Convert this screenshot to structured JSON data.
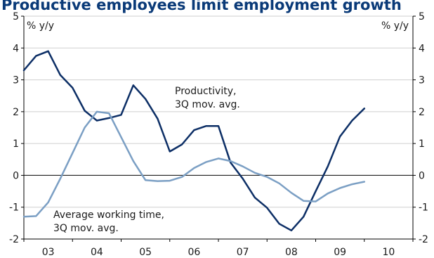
{
  "chart_data": {
    "type": "line",
    "title": "Productive employees limit employment growth",
    "y_unit_left": "% y/y",
    "y_unit_right": "% y/y",
    "ylim": [
      -2,
      5
    ],
    "yticks": [
      "5",
      "4",
      "3",
      "2",
      "1",
      "0",
      "-1",
      "-2"
    ],
    "ytick_values": [
      5,
      4,
      3,
      2,
      1,
      0,
      -1,
      -2
    ],
    "xlim": [
      2003.0,
      2011.0
    ],
    "xtick_labels": [
      "03",
      "04",
      "05",
      "06",
      "07",
      "08",
      "09",
      "10"
    ],
    "xtick_values": [
      2003.5,
      2004.5,
      2005.5,
      2006.5,
      2007.5,
      2008.5,
      2009.5,
      2010.5
    ],
    "grid": "horizontal",
    "zero_line": true,
    "colors": {
      "productivity": "#0d2f66",
      "working_time": "#7b9fc4",
      "title": "#0a3a78"
    },
    "series": [
      {
        "key": "productivity",
        "annotation": [
          "Productivity,",
          "3Q mov. avg."
        ],
        "x": [
          2003.0,
          2003.25,
          2003.5,
          2003.75,
          2004.0,
          2004.25,
          2004.5,
          2004.75,
          2005.0,
          2005.25,
          2005.5,
          2005.75,
          2006.0,
          2006.25,
          2006.5,
          2006.75,
          2007.0,
          2007.25,
          2007.5,
          2007.75,
          2008.0,
          2008.25,
          2008.5,
          2008.75,
          2009.0,
          2009.25,
          2009.5,
          2009.75,
          2010.0,
          2010.25,
          2010.5
        ],
        "values": [
          3.3,
          3.75,
          3.9,
          3.15,
          2.75,
          2.03,
          1.72,
          1.8,
          1.9,
          2.83,
          2.4,
          1.78,
          0.75,
          0.97,
          1.42,
          1.55,
          1.55,
          0.4,
          -0.1,
          -0.7,
          -1.02,
          -1.52,
          -1.73,
          -1.3,
          -0.5,
          0.28,
          1.22,
          1.72,
          2.1,
          null,
          null
        ]
      },
      {
        "key": "working_time",
        "annotation": [
          "Average working time,",
          "3Q mov. avg."
        ],
        "x": [
          2003.0,
          2003.25,
          2003.5,
          2003.75,
          2004.0,
          2004.25,
          2004.5,
          2004.75,
          2005.0,
          2005.25,
          2005.5,
          2005.75,
          2006.0,
          2006.25,
          2006.5,
          2006.75,
          2007.0,
          2007.25,
          2007.5,
          2007.75,
          2008.0,
          2008.25,
          2008.5,
          2008.75,
          2009.0,
          2009.25,
          2009.5,
          2009.75,
          2010.0,
          2010.25,
          2010.5
        ],
        "values": [
          -1.3,
          -1.28,
          -0.85,
          -0.1,
          0.7,
          1.5,
          2.0,
          1.95,
          1.2,
          0.45,
          -0.15,
          -0.18,
          -0.17,
          -0.05,
          0.23,
          0.42,
          0.53,
          0.45,
          0.28,
          0.08,
          -0.05,
          -0.25,
          -0.55,
          -0.8,
          -0.82,
          -0.57,
          -0.4,
          -0.28,
          -0.2,
          null,
          null
        ]
      }
    ]
  }
}
